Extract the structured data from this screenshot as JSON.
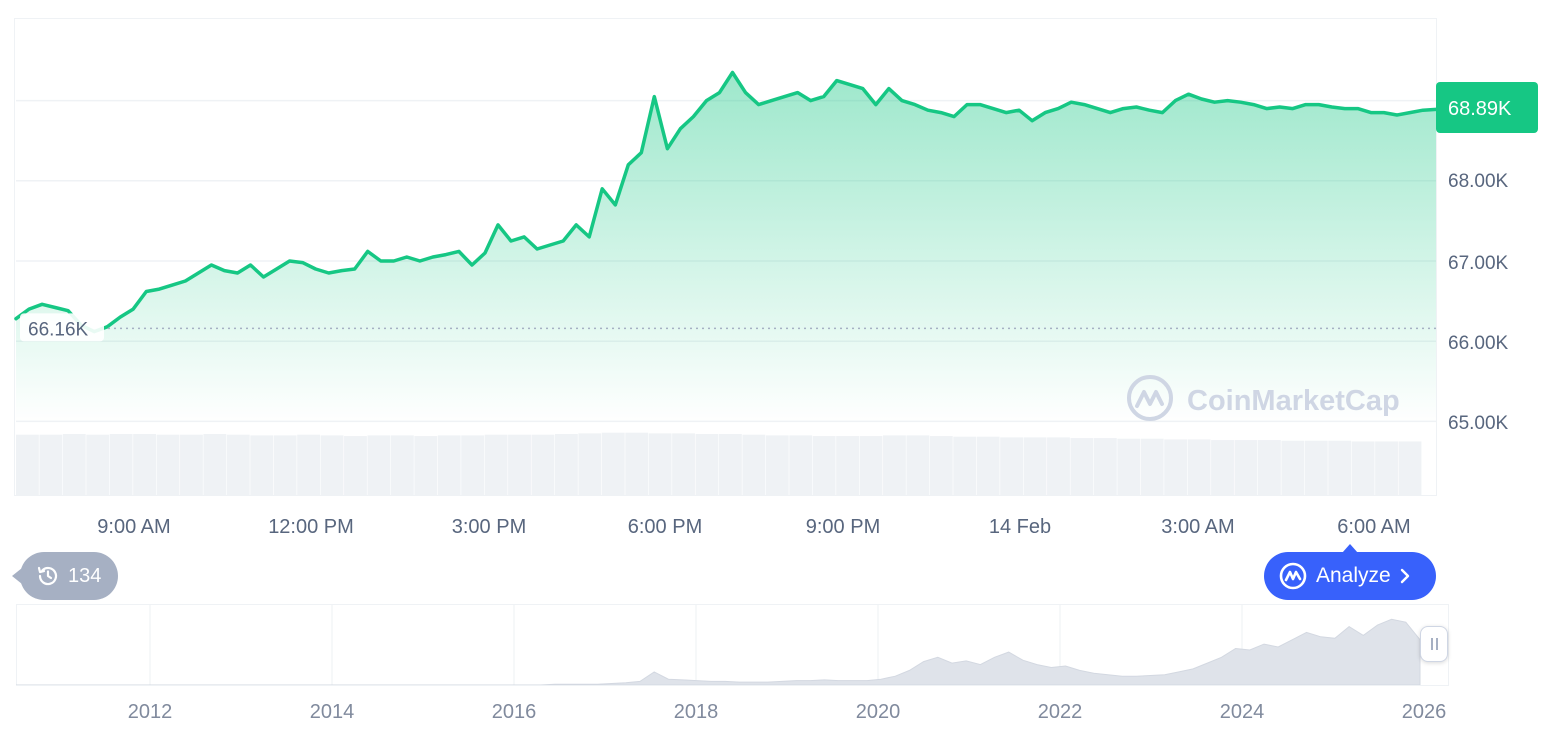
{
  "chart_data": {
    "type": "area",
    "series": [
      {
        "values": [
          66.28,
          66.4,
          66.46,
          66.42,
          66.38,
          66.2,
          66.12,
          66.18,
          66.3,
          66.4,
          66.62,
          66.65,
          66.7,
          66.75,
          66.85,
          66.95,
          66.88,
          66.85,
          66.95,
          66.8,
          66.9,
          67.0,
          66.98,
          66.9,
          66.85,
          66.88,
          66.9,
          67.12,
          67.0,
          67.0,
          67.05,
          67.0,
          67.05,
          67.08,
          67.12,
          66.95,
          67.1,
          67.45,
          67.25,
          67.3,
          67.15,
          67.2,
          67.25,
          67.45,
          67.3,
          67.9,
          67.7,
          68.2,
          68.35,
          69.05,
          68.4,
          68.65,
          68.8,
          69.0,
          69.1,
          69.35,
          69.1,
          68.95,
          69.0,
          69.05,
          69.1,
          69.0,
          69.05,
          69.25,
          69.2,
          69.15,
          68.95,
          69.15,
          69.0,
          68.95,
          68.88,
          68.85,
          68.8,
          68.95,
          68.95,
          68.9,
          68.85,
          68.88,
          68.75,
          68.85,
          68.9,
          68.98,
          68.95,
          68.9,
          68.85,
          68.9,
          68.92,
          68.88,
          68.85,
          69.0,
          69.08,
          69.02,
          68.98,
          69.0,
          68.98,
          68.95,
          68.9,
          68.92,
          68.9,
          68.95,
          68.95,
          68.92,
          68.9,
          68.9,
          68.85,
          68.85,
          68.82,
          68.85,
          68.88,
          68.89
        ],
        "color": "#16c784"
      }
    ],
    "x_start": "6:00 AM",
    "x_ticks": [
      "9:00 AM",
      "12:00 PM",
      "3:00 PM",
      "6:00 PM",
      "9:00 PM",
      "14 Feb",
      "3:00 AM",
      "6:00 AM"
    ],
    "y_ticks": [
      "68.00K",
      "67.00K",
      "66.00K",
      "65.00K"
    ],
    "ylim": [
      64.98,
      70.03
    ],
    "grid": true,
    "current_price_label": "68.89K",
    "baseline_label": "66.16K",
    "baseline_value": 66.16,
    "volume": [
      0.9,
      0.9,
      0.91,
      0.9,
      0.91,
      0.91,
      0.9,
      0.9,
      0.91,
      0.9,
      0.89,
      0.89,
      0.9,
      0.89,
      0.88,
      0.89,
      0.89,
      0.88,
      0.89,
      0.89,
      0.9,
      0.9,
      0.9,
      0.91,
      0.92,
      0.93,
      0.93,
      0.92,
      0.92,
      0.91,
      0.91,
      0.9,
      0.89,
      0.89,
      0.88,
      0.88,
      0.88,
      0.89,
      0.89,
      0.88,
      0.87,
      0.87,
      0.86,
      0.86,
      0.86,
      0.85,
      0.85,
      0.84,
      0.84,
      0.83,
      0.83,
      0.82,
      0.82,
      0.82,
      0.81,
      0.81,
      0.81,
      0.8,
      0.8,
      0.8
    ],
    "navigator": {
      "years": [
        "2012",
        "2014",
        "2016",
        "2018",
        "2020",
        "2022",
        "2024",
        "2026"
      ],
      "values": [
        0.0,
        0.0,
        0.0,
        0.0,
        0.0,
        0.0,
        0.0,
        0.0,
        0.0,
        0.0,
        0.0,
        0.0,
        0.0,
        0.0,
        0.0,
        0.0,
        0.0,
        0.0,
        0.0,
        0.0,
        0.0,
        0.0,
        0.0,
        0.0,
        0.0,
        0.0,
        0.0,
        0.0,
        0.0,
        0.0,
        0.0,
        0.0,
        0.0,
        0.0,
        0.0,
        0.0,
        0.0,
        0.0,
        0.01,
        0.01,
        0.01,
        0.01,
        0.02,
        0.03,
        0.05,
        0.18,
        0.08,
        0.07,
        0.06,
        0.05,
        0.05,
        0.04,
        0.04,
        0.04,
        0.05,
        0.06,
        0.06,
        0.07,
        0.06,
        0.06,
        0.06,
        0.08,
        0.12,
        0.2,
        0.32,
        0.38,
        0.3,
        0.33,
        0.28,
        0.38,
        0.45,
        0.34,
        0.28,
        0.24,
        0.26,
        0.2,
        0.16,
        0.14,
        0.12,
        0.12,
        0.13,
        0.14,
        0.18,
        0.22,
        0.3,
        0.38,
        0.5,
        0.48,
        0.56,
        0.52,
        0.62,
        0.72,
        0.66,
        0.64,
        0.8,
        0.68,
        0.82,
        0.9,
        0.86,
        0.62
      ]
    }
  },
  "watermark": {
    "text": "CoinMarketCap"
  },
  "history_chip": {
    "count": "134"
  },
  "analyze_button": {
    "label": "Analyze"
  },
  "colors": {
    "line": "#16c784",
    "badge": "#16c784",
    "analyze": "#3861fb",
    "chip": "#a6b0c3",
    "grid": "#eff2f5",
    "volume": "#eff2f5",
    "watermark": "#cfd6e4"
  }
}
